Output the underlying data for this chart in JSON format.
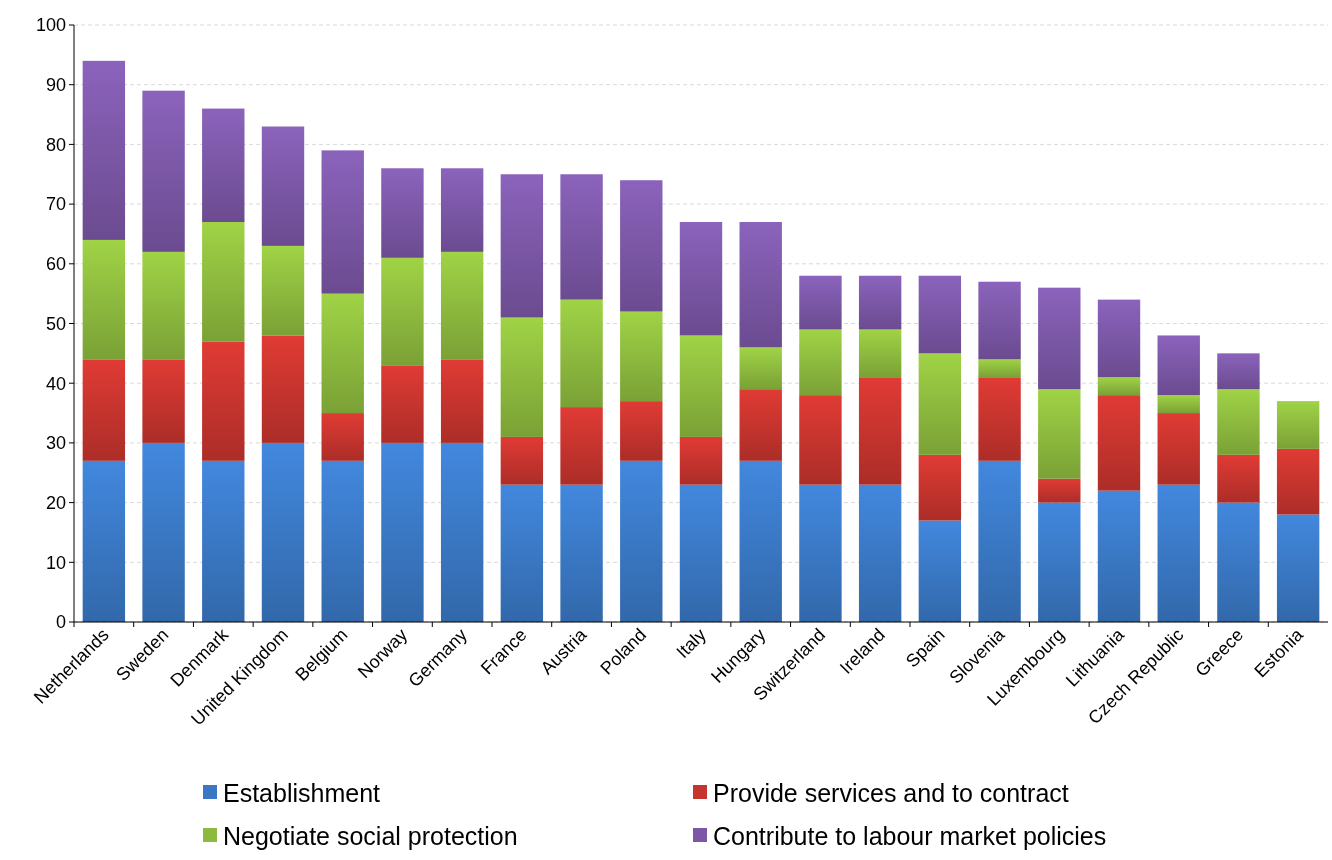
{
  "chart_data": {
    "type": "bar",
    "stacked": true,
    "categories": [
      "Netherlands",
      "Sweden",
      "Denmark",
      "United Kingdom",
      "Belgium",
      "Norway",
      "Germany",
      "France",
      "Austria",
      "Poland",
      "Italy",
      "Hungary",
      "Switzerland",
      "Ireland",
      "Spain",
      "Slovenia",
      "Luxembourg",
      "Lithuania",
      "Czech Republic",
      "Greece",
      "Estonia"
    ],
    "series": [
      {
        "name": "Establishment",
        "color": "#3a78c4",
        "values": [
          27,
          30,
          27,
          30,
          27,
          30,
          30,
          23,
          23,
          27,
          23,
          27,
          23,
          23,
          17,
          27,
          20,
          22,
          23,
          20,
          18
        ]
      },
      {
        "name": "Provide services and to contract",
        "color": "#c6342e",
        "values": [
          17,
          14,
          20,
          18,
          8,
          13,
          14,
          8,
          13,
          10,
          8,
          12,
          15,
          18,
          11,
          14,
          4,
          16,
          12,
          8,
          11
        ]
      },
      {
        "name": "Negotiate social protection",
        "color": "#8dba3e",
        "values": [
          20,
          18,
          20,
          15,
          20,
          18,
          18,
          20,
          18,
          15,
          17,
          7,
          11,
          8,
          17,
          3,
          15,
          3,
          3,
          11,
          8
        ]
      },
      {
        "name": "Contribute to labour market policies",
        "color": "#7b57a6",
        "values": [
          30,
          27,
          19,
          20,
          24,
          15,
          14,
          24,
          21,
          22,
          19,
          21,
          9,
          9,
          13,
          13,
          17,
          13,
          10,
          6,
          0
        ]
      }
    ],
    "ylim": [
      0,
      100
    ],
    "yticks": [
      0,
      10,
      20,
      30,
      40,
      50,
      60,
      70,
      80,
      90,
      100
    ],
    "grid": "y",
    "legend": "bottom"
  }
}
